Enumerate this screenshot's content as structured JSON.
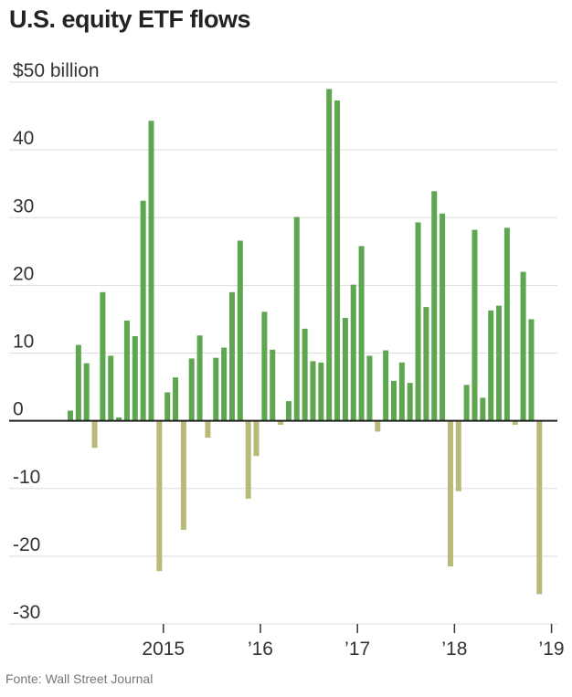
{
  "title": "U.S. equity ETF flows",
  "source": "Fonte: Wall Street Journal",
  "colors": {
    "positive": "#5fa651",
    "negative": "#b9b97a",
    "grid": "#dddddd",
    "zero": "#222222"
  },
  "chart_data": {
    "type": "bar",
    "title": "U.S. equity ETF flows",
    "ylabel": "",
    "ylim": [
      -30,
      50
    ],
    "y_ticks": [
      {
        "value": 50,
        "label": "$50 billion"
      },
      {
        "value": 40,
        "label": "40"
      },
      {
        "value": 30,
        "label": "30"
      },
      {
        "value": 20,
        "label": "20"
      },
      {
        "value": 10,
        "label": "10"
      },
      {
        "value": 0,
        "label": "0"
      },
      {
        "value": -10,
        "label": "-10"
      },
      {
        "value": -20,
        "label": "-20"
      },
      {
        "value": -30,
        "label": "-30"
      }
    ],
    "x_ticks": [
      {
        "index": 12,
        "label": "2015"
      },
      {
        "index": 24,
        "label": "’16"
      },
      {
        "index": 36,
        "label": "’17"
      },
      {
        "index": 48,
        "label": "’18"
      },
      {
        "index": 60,
        "label": "’19"
      }
    ],
    "grid": true,
    "values": [
      1.5,
      11.2,
      8.5,
      -4.0,
      19.0,
      9.6,
      0.5,
      14.8,
      12.5,
      32.5,
      44.3,
      -22.2,
      4.2,
      6.4,
      -16.1,
      9.2,
      12.6,
      -2.5,
      9.3,
      10.8,
      19.0,
      26.6,
      -11.5,
      -5.2,
      16.1,
      10.5,
      -0.6,
      2.9,
      30.1,
      13.6,
      8.8,
      8.6,
      49.0,
      47.3,
      15.2,
      20.1,
      25.8,
      9.6,
      -1.6,
      10.4,
      5.9,
      8.6,
      5.6,
      29.3,
      16.8,
      33.9,
      30.6,
      -21.5,
      -10.4,
      5.3,
      28.2,
      3.4,
      16.3,
      17.0,
      28.5,
      -0.6,
      22.0,
      15.0,
      -25.6
    ]
  }
}
